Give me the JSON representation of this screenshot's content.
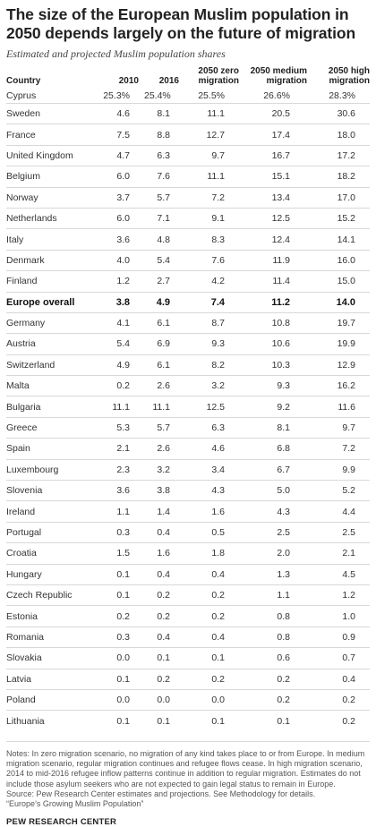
{
  "title": "The size of the European Muslim population in 2050 depends largely on the future of migration",
  "subtitle": "Estimated and projected Muslim population shares",
  "headers": [
    "Country",
    "2010",
    "2016",
    "2050 zero migration",
    "2050 medium migration",
    "2050 high migration"
  ],
  "rows": [
    [
      "Cyprus",
      "25.3%",
      "25.4%",
      "25.5%",
      "26.6%",
      "28.3%"
    ],
    [
      "Sweden",
      "4.6",
      "8.1",
      "11.1",
      "20.5",
      "30.6"
    ],
    [
      "France",
      "7.5",
      "8.8",
      "12.7",
      "17.4",
      "18.0"
    ],
    [
      "United Kingdom",
      "4.7",
      "6.3",
      "9.7",
      "16.7",
      "17.2"
    ],
    [
      "Belgium",
      "6.0",
      "7.6",
      "11.1",
      "15.1",
      "18.2"
    ],
    [
      "Norway",
      "3.7",
      "5.7",
      "7.2",
      "13.4",
      "17.0"
    ],
    [
      "Netherlands",
      "6.0",
      "7.1",
      "9.1",
      "12.5",
      "15.2"
    ],
    [
      "Italy",
      "3.6",
      "4.8",
      "8.3",
      "12.4",
      "14.1"
    ],
    [
      "Denmark",
      "4.0",
      "5.4",
      "7.6",
      "11.9",
      "16.0"
    ],
    [
      "Finland",
      "1.2",
      "2.7",
      "4.2",
      "11.4",
      "15.0"
    ],
    [
      "Europe overall",
      "3.8",
      "4.9",
      "7.4",
      "11.2",
      "14.0"
    ],
    [
      "Germany",
      "4.1",
      "6.1",
      "8.7",
      "10.8",
      "19.7"
    ],
    [
      "Austria",
      "5.4",
      "6.9",
      "9.3",
      "10.6",
      "19.9"
    ],
    [
      "Switzerland",
      "4.9",
      "6.1",
      "8.2",
      "10.3",
      "12.9"
    ],
    [
      "Malta",
      "0.2",
      "2.6",
      "3.2",
      "9.3",
      "16.2"
    ],
    [
      "Bulgaria",
      "11.1",
      "11.1",
      "12.5",
      "9.2",
      "11.6"
    ],
    [
      "Greece",
      "5.3",
      "5.7",
      "6.3",
      "8.1",
      "9.7"
    ],
    [
      "Spain",
      "2.1",
      "2.6",
      "4.6",
      "6.8",
      "7.2"
    ],
    [
      "Luxembourg",
      "2.3",
      "3.2",
      "3.4",
      "6.7",
      "9.9"
    ],
    [
      "Slovenia",
      "3.6",
      "3.8",
      "4.3",
      "5.0",
      "5.2"
    ],
    [
      "Ireland",
      "1.1",
      "1.4",
      "1.6",
      "4.3",
      "4.4"
    ],
    [
      "Portugal",
      "0.3",
      "0.4",
      "0.5",
      "2.5",
      "2.5"
    ],
    [
      "Croatia",
      "1.5",
      "1.6",
      "1.8",
      "2.0",
      "2.1"
    ],
    [
      "Hungary",
      "0.1",
      "0.4",
      "0.4",
      "1.3",
      "4.5"
    ],
    [
      "Czech Republic",
      "0.1",
      "0.2",
      "0.2",
      "1.1",
      "1.2"
    ],
    [
      "Estonia",
      "0.2",
      "0.2",
      "0.2",
      "0.8",
      "1.0"
    ],
    [
      "Romania",
      "0.3",
      "0.4",
      "0.4",
      "0.8",
      "0.9"
    ],
    [
      "Slovakia",
      "0.0",
      "0.1",
      "0.1",
      "0.6",
      "0.7"
    ],
    [
      "Latvia",
      "0.1",
      "0.2",
      "0.2",
      "0.2",
      "0.4"
    ],
    [
      "Poland",
      "0.0",
      "0.0",
      "0.0",
      "0.2",
      "0.2"
    ],
    [
      "Lithuania",
      "0.1",
      "0.1",
      "0.1",
      "0.1",
      "0.2"
    ]
  ],
  "bold_row": "Europe overall",
  "notes": [
    "Notes: In zero migration scenario, no migration of any kind takes place to or from Europe. In medium migration scenario, regular migration continues and refugee flows cease. In high migration scenario, 2014 to mid-2016 refugee inflow patterns continue in addition to regular migration. Estimates do not include those asylum seekers who are not expected to gain legal status to remain in Europe.",
    "Source: Pew Research Center estimates and projections. See Methodology for details.",
    "“Europe’s Growing Muslim Population”"
  ],
  "footer": "PEW RESEARCH CENTER"
}
